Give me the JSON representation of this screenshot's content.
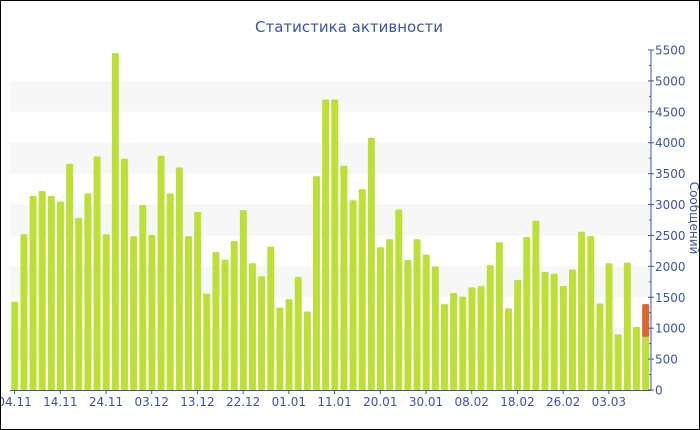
{
  "chart_data": {
    "type": "bar",
    "stacked": true,
    "title": "Статистика активности",
    "xlabel": "",
    "ylabel": "Сообщений",
    "ylim": [
      0,
      5500
    ],
    "y_axis_position": "right",
    "y_ticks": [
      0,
      500,
      1000,
      1500,
      2000,
      2500,
      3000,
      3500,
      4000,
      4500,
      5000,
      5500
    ],
    "x_tick_labels": [
      {
        "index": 0,
        "label": "04.11"
      },
      {
        "index": 5,
        "label": "14.11"
      },
      {
        "index": 10,
        "label": "24.11"
      },
      {
        "index": 15,
        "label": "03.12"
      },
      {
        "index": 20,
        "label": "13.12"
      },
      {
        "index": 25,
        "label": "22.12"
      },
      {
        "index": 30,
        "label": "01.01"
      },
      {
        "index": 35,
        "label": "11.01"
      },
      {
        "index": 40,
        "label": "20.01"
      },
      {
        "index": 45,
        "label": "30.01"
      },
      {
        "index": 50,
        "label": "08.02"
      },
      {
        "index": 55,
        "label": "18.02"
      },
      {
        "index": 60,
        "label": "26.02"
      },
      {
        "index": 65,
        "label": "03.03"
      }
    ],
    "grid_bands": true,
    "legend": "none",
    "series": [
      {
        "color": "#bde034",
        "values": [
          1430,
          2520,
          3140,
          3220,
          3140,
          3050,
          3660,
          2780,
          3180,
          3780,
          2520,
          5450,
          3740,
          2490,
          2990,
          2510,
          3790,
          3180,
          3600,
          2490,
          2880,
          1560,
          2230,
          2110,
          2410,
          2910,
          2050,
          1840,
          2320,
          1330,
          1470,
          1830,
          1270,
          3460,
          4700,
          4700,
          3630,
          3070,
          3250,
          4080,
          2310,
          2440,
          2920,
          2100,
          2440,
          2190,
          2000,
          1390,
          1570,
          1510,
          1660,
          1680,
          2020,
          2390,
          1320,
          1780,
          2475,
          2740,
          1910,
          1880,
          1680,
          1950,
          2560,
          2490,
          1400,
          2050,
          900,
          2060,
          1020,
          860
        ]
      },
      {
        "color": "#e0642f",
        "values": [
          0,
          0,
          0,
          0,
          0,
          0,
          0,
          0,
          0,
          0,
          0,
          0,
          0,
          0,
          0,
          0,
          0,
          0,
          0,
          0,
          0,
          0,
          0,
          0,
          0,
          0,
          0,
          0,
          0,
          0,
          0,
          0,
          0,
          0,
          0,
          0,
          0,
          0,
          0,
          0,
          0,
          0,
          0,
          0,
          0,
          0,
          0,
          0,
          0,
          0,
          0,
          0,
          0,
          0,
          0,
          0,
          0,
          0,
          0,
          0,
          0,
          0,
          0,
          0,
          0,
          0,
          0,
          0,
          0,
          530
        ]
      }
    ],
    "colors": {
      "text": "#3d55a3",
      "axis": "#3d55a3",
      "band": "#f7f7f7"
    }
  }
}
